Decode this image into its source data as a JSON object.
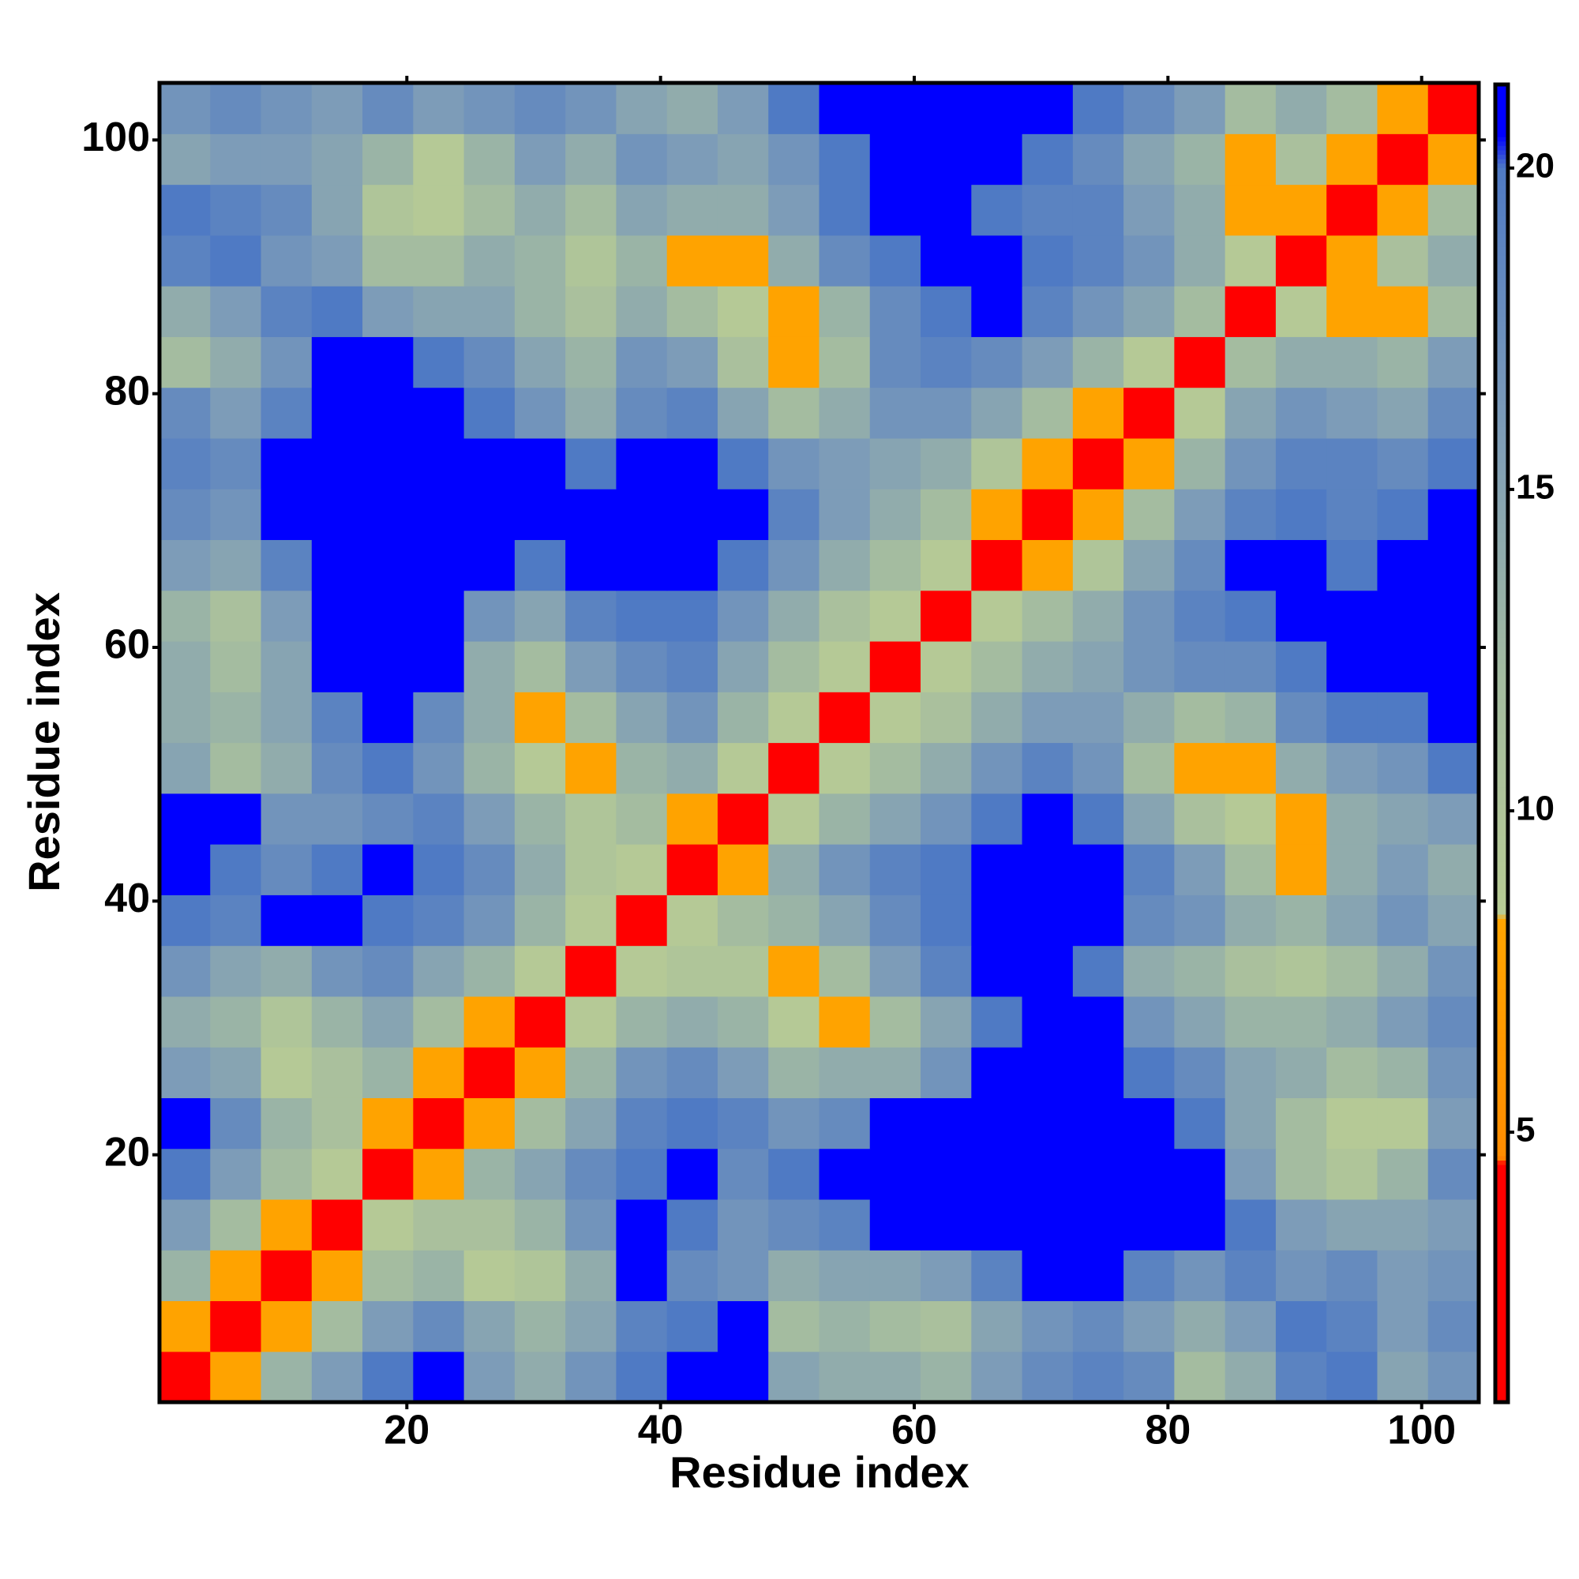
{
  "chart_data": {
    "type": "heatmap",
    "x_label": "Residue index",
    "y_label": "Residue index",
    "x": [
      2.5,
      6.5,
      10.5,
      14.5,
      18.5,
      22.5,
      26.5,
      30.5,
      34.5,
      38.5,
      42.5,
      46.5,
      50.5,
      54.5,
      58.5,
      62.5,
      66.5,
      70.5,
      74.5,
      78.5,
      82.5,
      86.5,
      90.5,
      94.5,
      98.5,
      102.5
    ],
    "y": [
      2.5,
      6.5,
      10.5,
      14.5,
      18.5,
      22.5,
      26.5,
      30.5,
      34.5,
      38.5,
      42.5,
      46.5,
      50.5,
      54.5,
      58.5,
      62.5,
      66.5,
      70.5,
      74.5,
      78.5,
      82.5,
      86.5,
      90.5,
      94.5,
      98.5,
      102.5
    ],
    "z": [
      [
        3.8,
        8,
        13,
        16,
        20,
        21,
        16,
        14,
        17,
        20,
        21,
        21,
        15,
        14,
        14,
        13,
        16,
        18,
        19,
        18,
        12,
        14,
        19,
        20,
        15,
        17
      ],
      [
        8,
        3.8,
        8,
        12,
        16,
        18,
        15,
        13,
        15,
        19,
        20,
        21,
        12,
        13,
        12,
        11,
        15,
        17,
        18,
        16,
        14,
        16,
        20,
        19,
        16,
        18
      ],
      [
        13,
        8,
        3.8,
        8,
        12,
        13,
        9,
        10,
        14,
        21,
        18,
        17,
        14,
        15,
        15,
        16,
        19,
        21,
        21,
        19,
        17,
        19,
        17,
        18,
        16,
        17
      ],
      [
        16,
        12,
        8,
        3.8,
        9,
        11,
        11,
        13,
        17,
        21,
        20,
        17,
        18,
        19,
        21,
        21,
        21,
        21,
        21,
        21,
        21,
        20,
        16,
        15,
        15,
        16
      ],
      [
        20,
        16,
        12,
        9,
        3.8,
        8,
        13,
        15,
        18,
        20,
        21,
        18,
        20,
        21,
        21,
        21,
        21,
        21,
        21,
        21,
        21,
        16,
        12,
        10,
        13,
        18
      ],
      [
        21,
        18,
        13,
        11,
        8,
        3.8,
        8,
        12,
        15,
        19,
        20,
        19,
        17,
        18,
        21,
        21,
        21,
        21,
        21,
        21,
        20,
        15,
        12,
        9,
        9,
        16
      ],
      [
        16,
        15,
        9,
        11,
        13,
        8,
        3.8,
        8,
        13,
        17,
        18,
        16,
        13,
        14,
        14,
        17,
        21,
        21,
        21,
        20,
        18,
        15,
        14,
        12,
        13,
        17
      ],
      [
        14,
        13,
        10,
        13,
        15,
        12,
        8,
        3.8,
        9,
        13,
        14,
        13,
        9,
        8,
        12,
        15,
        20,
        21,
        21,
        17,
        15,
        13,
        13,
        14,
        16,
        18
      ],
      [
        17,
        15,
        14,
        17,
        18,
        15,
        13,
        9,
        3.8,
        9,
        10,
        10,
        8,
        12,
        16,
        19,
        21,
        21,
        20,
        14,
        13,
        11,
        10,
        12,
        14,
        17
      ],
      [
        20,
        19,
        21,
        21,
        20,
        19,
        17,
        13,
        9,
        3.8,
        9,
        12,
        13,
        15,
        18,
        20,
        21,
        21,
        21,
        18,
        17,
        14,
        13,
        15,
        17,
        15
      ],
      [
        21,
        20,
        18,
        20,
        21,
        20,
        18,
        14,
        10,
        9,
        3.8,
        8,
        14,
        17,
        19,
        20,
        21,
        21,
        21,
        19,
        16,
        12,
        8,
        14,
        16,
        14
      ],
      [
        21,
        21,
        17,
        17,
        18,
        19,
        16,
        13,
        10,
        12,
        8,
        3.8,
        9,
        13,
        15,
        17,
        20,
        21,
        20,
        15,
        11,
        9,
        8,
        14,
        15,
        16
      ],
      [
        15,
        12,
        14,
        18,
        20,
        17,
        13,
        9,
        8,
        13,
        14,
        9,
        3.8,
        9,
        12,
        14,
        17,
        19,
        17,
        12,
        8,
        8,
        14,
        16,
        17,
        20
      ],
      [
        14,
        13,
        15,
        19,
        21,
        18,
        14,
        8,
        12,
        15,
        17,
        13,
        9,
        3.8,
        9,
        11,
        14,
        16,
        16,
        14,
        12,
        13,
        18,
        20,
        20,
        21
      ],
      [
        14,
        12,
        15,
        21,
        21,
        21,
        14,
        12,
        16,
        18,
        19,
        15,
        12,
        9,
        3.8,
        9,
        12,
        14,
        15,
        17,
        18,
        18,
        20,
        21,
        21,
        21
      ],
      [
        13,
        11,
        16,
        21,
        21,
        21,
        17,
        15,
        19,
        20,
        20,
        17,
        14,
        11,
        9,
        3.8,
        9,
        12,
        14,
        17,
        19,
        20,
        21,
        21,
        21,
        21
      ],
      [
        16,
        15,
        19,
        21,
        21,
        21,
        21,
        20,
        21,
        21,
        21,
        20,
        17,
        14,
        12,
        9,
        3.8,
        8,
        10,
        15,
        18,
        21,
        21,
        20,
        21,
        21
      ],
      [
        18,
        17,
        21,
        21,
        21,
        21,
        21,
        21,
        21,
        21,
        21,
        21,
        19,
        16,
        14,
        12,
        8,
        3.8,
        8,
        12,
        16,
        19,
        20,
        19,
        20,
        21
      ],
      [
        19,
        18,
        21,
        21,
        21,
        21,
        21,
        21,
        20,
        21,
        21,
        20,
        17,
        16,
        15,
        14,
        10,
        8,
        3.8,
        8,
        13,
        17,
        19,
        19,
        18,
        20
      ],
      [
        18,
        16,
        19,
        21,
        21,
        21,
        20,
        17,
        14,
        18,
        19,
        15,
        12,
        14,
        17,
        17,
        15,
        12,
        8,
        3.8,
        9,
        15,
        17,
        16,
        15,
        18
      ],
      [
        12,
        14,
        17,
        21,
        21,
        20,
        18,
        15,
        13,
        17,
        16,
        11,
        8,
        12,
        18,
        19,
        18,
        16,
        13,
        9,
        3.8,
        12,
        14,
        14,
        13,
        16
      ],
      [
        14,
        16,
        19,
        20,
        16,
        15,
        15,
        13,
        11,
        14,
        12,
        9,
        8,
        13,
        18,
        20,
        21,
        19,
        17,
        15,
        12,
        3.8,
        9,
        8,
        8,
        12
      ],
      [
        19,
        20,
        17,
        16,
        12,
        12,
        14,
        13,
        10,
        13,
        8,
        8,
        14,
        18,
        20,
        21,
        21,
        20,
        19,
        17,
        14,
        9,
        3.8,
        8,
        11,
        14
      ],
      [
        20,
        19,
        18,
        15,
        10,
        9,
        12,
        14,
        12,
        15,
        14,
        14,
        16,
        20,
        21,
        21,
        20,
        19,
        19,
        16,
        14,
        8,
        8,
        3.8,
        8,
        12
      ],
      [
        15,
        16,
        16,
        15,
        13,
        9,
        13,
        16,
        14,
        17,
        16,
        15,
        17,
        20,
        21,
        21,
        21,
        20,
        18,
        15,
        13,
        8,
        11,
        8,
        3.8,
        8
      ],
      [
        17,
        18,
        17,
        16,
        18,
        16,
        17,
        18,
        17,
        15,
        14,
        16,
        20,
        21,
        21,
        21,
        21,
        21,
        20,
        18,
        16,
        12,
        14,
        12,
        8,
        3.8
      ]
    ],
    "xlim": [
      0.5,
      104.5
    ],
    "ylim": [
      0.5,
      104.5
    ],
    "xticks": [
      20,
      40,
      60,
      80,
      100
    ],
    "yticks": [
      20,
      40,
      60,
      80,
      100
    ],
    "zlim": [
      0.8,
      21.3
    ],
    "zticks": [
      5,
      10,
      15,
      20
    ],
    "colorscale": [
      [
        0.8,
        "#ff0000"
      ],
      [
        4.5,
        "#ff0000"
      ],
      [
        4.6,
        "#ff8c00"
      ],
      [
        8.3,
        "#ffa500"
      ],
      [
        8.4,
        "#b8cc94"
      ],
      [
        12,
        "#a4bca0"
      ],
      [
        16,
        "#7d9cb8"
      ],
      [
        20,
        "#4f7ac4"
      ],
      [
        20.5,
        "#0000ff"
      ],
      [
        21.3,
        "#0000ff"
      ]
    ]
  }
}
